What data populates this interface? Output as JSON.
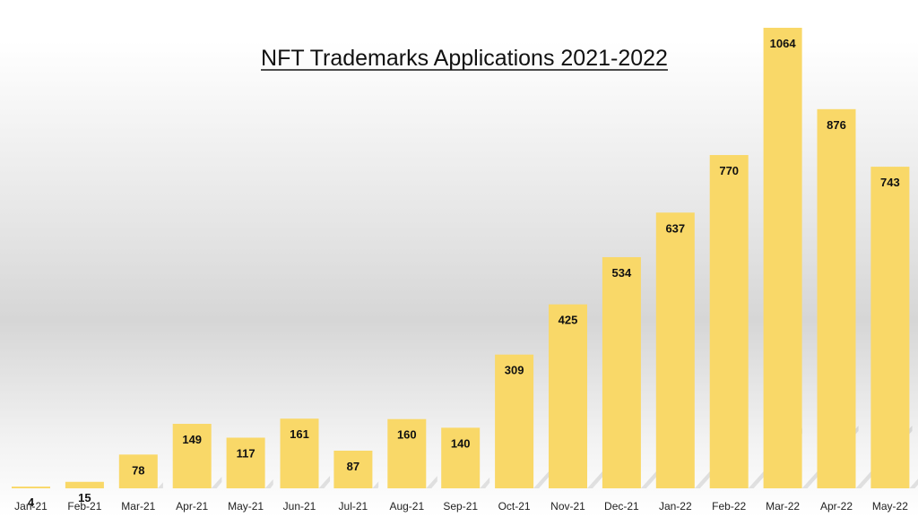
{
  "chart_data": {
    "type": "bar",
    "title": "NFT Trademarks Applications 2021-2022",
    "xlabel": "",
    "ylabel": "",
    "categories": [
      "Jan-21",
      "Feb-21",
      "Mar-21",
      "Apr-21",
      "May-21",
      "Jun-21",
      "Jul-21",
      "Aug-21",
      "Sep-21",
      "Oct-21",
      "Nov-21",
      "Dec-21",
      "Jan-22",
      "Feb-22",
      "Mar-22",
      "Apr-22",
      "May-22"
    ],
    "values": [
      4,
      15,
      78,
      149,
      117,
      161,
      87,
      160,
      140,
      309,
      425,
      534,
      637,
      770,
      1064,
      876,
      743
    ],
    "ylim": [
      0,
      1064
    ],
    "grid": false,
    "legend": "none",
    "bar_color": "#f9d868",
    "data_labels": true
  }
}
